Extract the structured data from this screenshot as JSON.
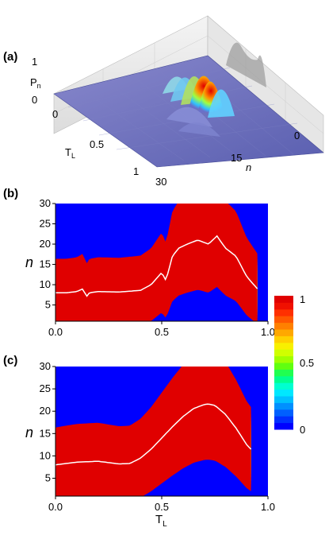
{
  "panels": {
    "a": "(a)",
    "b": "(b)",
    "c": "(c)"
  },
  "chart_data": [
    {
      "type": "surface",
      "panel": "(a)",
      "zlabel": "P",
      "zlabel_sub": "n",
      "xlabel": "T",
      "xlabel_sub": "L",
      "ylabel": "n",
      "z_ticks": [
        "1",
        "0"
      ],
      "t_ticks": [
        "0",
        "0.5",
        "1"
      ],
      "n_ticks": [
        "0",
        "15",
        "30"
      ]
    },
    {
      "type": "heatmap",
      "panel": "(b)",
      "ylabel": "n",
      "xlim": [
        0,
        1.0
      ],
      "ylim": [
        1,
        30
      ],
      "x_ticks": [
        "0.0",
        "0.5",
        "1.0"
      ],
      "y_ticks": [
        "30",
        "25",
        "20",
        "15",
        "10",
        "5"
      ],
      "peak_line": {
        "x": [
          0.0,
          0.05,
          0.1,
          0.13,
          0.145,
          0.16,
          0.2,
          0.3,
          0.4,
          0.45,
          0.5,
          0.52,
          0.55,
          0.58,
          0.62,
          0.67,
          0.72,
          0.76,
          0.8,
          0.85,
          0.9,
          0.95
        ],
        "y": [
          8,
          8,
          8.3,
          9,
          7,
          8,
          8.3,
          8.2,
          8.6,
          10,
          13,
          11,
          17,
          19,
          20,
          21,
          20,
          22,
          19,
          17,
          12,
          9
        ]
      }
    },
    {
      "type": "heatmap",
      "panel": "(c)",
      "ylabel": "n",
      "xlabel": "T",
      "xlabel_sub": "L",
      "xlim": [
        0,
        1.0
      ],
      "ylim": [
        1,
        30
      ],
      "x_ticks": [
        "0.0",
        "0.5",
        "1.0"
      ],
      "y_ticks": [
        "30",
        "25",
        "20",
        "15",
        "10",
        "5"
      ],
      "peak_line": {
        "x": [
          0.0,
          0.1,
          0.2,
          0.3,
          0.35,
          0.4,
          0.45,
          0.5,
          0.55,
          0.6,
          0.65,
          0.7,
          0.72,
          0.75,
          0.8,
          0.85,
          0.9,
          0.92
        ],
        "y": [
          8.0,
          8.6,
          8.8,
          8.2,
          8.3,
          9.5,
          11.5,
          14,
          16.5,
          18.8,
          20.6,
          21.5,
          21.6,
          21.3,
          19.3,
          16.2,
          12.5,
          11.5
        ]
      }
    }
  ],
  "colorbar": {
    "ticks": [
      "1",
      "0.5",
      "0"
    ],
    "range": [
      0,
      1
    ]
  }
}
